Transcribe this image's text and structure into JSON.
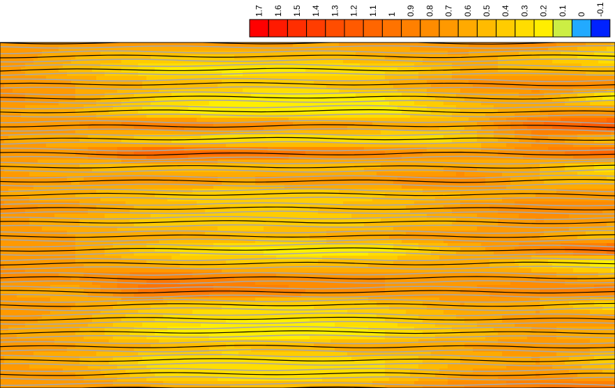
{
  "chart_data": {
    "type": "heatmap",
    "subtype": "filled-contour",
    "title": "",
    "xlabel": "",
    "ylabel": "",
    "legend_position": "top-right",
    "colorbar": {
      "levels": [
        "1.7",
        "1.6",
        "1.5",
        "1.4",
        "1.3",
        "1.2",
        "1.1",
        "1",
        "0.9",
        "0.8",
        "0.7",
        "0.6",
        "0.5",
        "0.4",
        "0.3",
        "0.2",
        "0.1",
        "0",
        "-0.1"
      ],
      "colors": [
        "#ff0000",
        "#ff1a00",
        "#ff2e00",
        "#ff3d00",
        "#ff4d00",
        "#ff5a00",
        "#ff6600",
        "#ff7300",
        "#ff8000",
        "#ff8c00",
        "#ff9900",
        "#ffaa00",
        "#ffbb00",
        "#ffcc00",
        "#ffdd00",
        "#ffee00",
        "#ccee44",
        "#22aaff",
        "#0022ff"
      ]
    },
    "bands": [
      {
        "y": 0.0,
        "z": [
          0.7,
          0.75,
          0.8,
          0.75,
          0.7,
          0.72,
          0.8,
          0.9,
          0.6
        ]
      },
      {
        "y": 0.04,
        "z": [
          0.8,
          0.6,
          0.5,
          0.5,
          0.55,
          0.6,
          0.7,
          0.5,
          0.3
        ]
      },
      {
        "y": 0.08,
        "z": [
          0.75,
          0.55,
          0.3,
          0.25,
          0.3,
          0.35,
          0.6,
          0.6,
          0.5
        ]
      },
      {
        "y": 0.12,
        "z": [
          0.8,
          0.7,
          0.6,
          0.5,
          0.5,
          0.6,
          0.8,
          0.9,
          0.9
        ]
      },
      {
        "y": 0.16,
        "z": [
          0.85,
          0.7,
          0.4,
          0.3,
          0.2,
          0.3,
          0.6,
          0.7,
          0.2
        ]
      },
      {
        "y": 0.2,
        "z": [
          0.7,
          0.6,
          0.35,
          0.2,
          0.2,
          0.25,
          0.5,
          0.7,
          0.8
        ]
      },
      {
        "y": 0.24,
        "z": [
          0.8,
          0.8,
          1.0,
          0.9,
          0.8,
          0.7,
          0.6,
          1.1,
          1.3
        ]
      },
      {
        "y": 0.28,
        "z": [
          0.7,
          0.6,
          0.4,
          0.3,
          0.3,
          0.3,
          0.4,
          0.8,
          0.5
        ]
      },
      {
        "y": 0.32,
        "z": [
          0.8,
          0.8,
          1.2,
          1.1,
          1.0,
          0.9,
          0.7,
          0.9,
          1.2
        ]
      },
      {
        "y": 0.36,
        "z": [
          0.7,
          0.6,
          0.5,
          0.5,
          0.5,
          0.6,
          0.7,
          0.6,
          0.3
        ]
      },
      {
        "y": 0.4,
        "z": [
          0.75,
          0.7,
          0.8,
          0.7,
          0.75,
          0.8,
          0.9,
          0.6,
          0.5
        ]
      },
      {
        "y": 0.44,
        "z": [
          0.7,
          0.6,
          0.5,
          0.4,
          0.4,
          0.5,
          0.6,
          0.7,
          0.8
        ]
      },
      {
        "y": 0.48,
        "z": [
          0.85,
          0.75,
          0.55,
          0.5,
          0.5,
          0.55,
          0.75,
          0.9,
          0.8
        ]
      },
      {
        "y": 0.52,
        "z": [
          0.75,
          0.6,
          0.45,
          0.4,
          0.45,
          0.5,
          0.6,
          0.8,
          0.7
        ]
      },
      {
        "y": 0.56,
        "z": [
          0.8,
          0.7,
          0.7,
          0.6,
          0.6,
          0.7,
          0.8,
          0.7,
          0.5
        ]
      },
      {
        "y": 0.6,
        "z": [
          0.75,
          0.7,
          0.4,
          0.3,
          0.2,
          0.25,
          0.6,
          0.9,
          1.2
        ]
      },
      {
        "y": 0.64,
        "z": [
          0.8,
          0.7,
          0.6,
          0.5,
          0.5,
          0.6,
          0.7,
          0.4,
          0.2
        ]
      },
      {
        "y": 0.68,
        "z": [
          0.85,
          0.8,
          1.0,
          0.9,
          0.8,
          0.8,
          0.7,
          0.8,
          0.6
        ]
      },
      {
        "y": 0.72,
        "z": [
          0.7,
          0.65,
          1.1,
          1.0,
          0.9,
          0.8,
          0.8,
          0.9,
          1.0
        ]
      },
      {
        "y": 0.76,
        "z": [
          0.75,
          0.7,
          0.5,
          0.4,
          0.4,
          0.5,
          0.7,
          0.6,
          0.3
        ]
      },
      {
        "y": 0.8,
        "z": [
          0.75,
          0.65,
          0.4,
          0.3,
          0.3,
          0.4,
          0.6,
          0.8,
          0.8
        ]
      },
      {
        "y": 0.84,
        "z": [
          0.7,
          0.6,
          0.3,
          0.2,
          0.2,
          0.3,
          0.5,
          0.7,
          0.6
        ]
      },
      {
        "y": 0.88,
        "z": [
          0.8,
          0.7,
          0.6,
          0.5,
          0.6,
          0.7,
          0.7,
          0.8,
          0.7
        ]
      },
      {
        "y": 0.92,
        "z": [
          0.7,
          0.6,
          0.35,
          0.3,
          0.35,
          0.4,
          0.6,
          0.7,
          0.4
        ]
      },
      {
        "y": 0.96,
        "z": [
          0.8,
          0.7,
          0.4,
          0.3,
          0.3,
          0.4,
          0.7,
          0.8,
          0.6
        ]
      },
      {
        "y": 1.0,
        "z": [
          0.8,
          0.8,
          0.7,
          0.6,
          0.6,
          0.7,
          0.9,
          1.0,
          1.1
        ]
      }
    ]
  }
}
